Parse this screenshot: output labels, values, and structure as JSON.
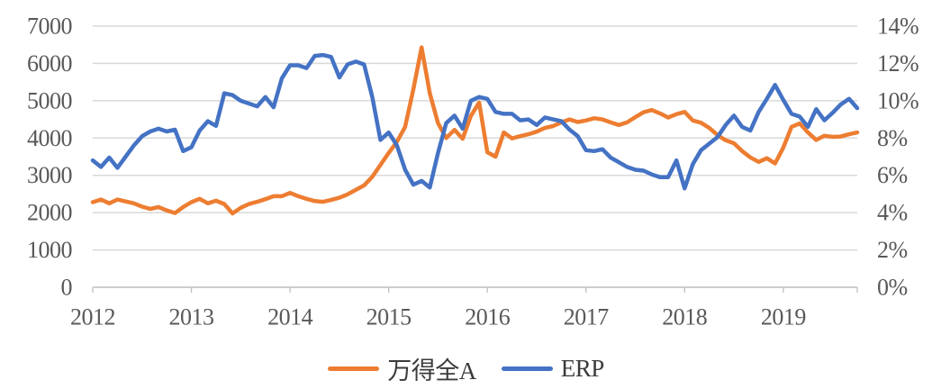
{
  "chart_data": {
    "type": "line",
    "title": "",
    "frequency": "monthly",
    "x_range": [
      "2012-01",
      "2019-10"
    ],
    "grid": true,
    "legend_position": "bottom",
    "categories": [
      "2012-01",
      "2012-02",
      "2012-03",
      "2012-04",
      "2012-05",
      "2012-06",
      "2012-07",
      "2012-08",
      "2012-09",
      "2012-10",
      "2012-11",
      "2012-12",
      "2013-01",
      "2013-02",
      "2013-03",
      "2013-04",
      "2013-05",
      "2013-06",
      "2013-07",
      "2013-08",
      "2013-09",
      "2013-10",
      "2013-11",
      "2013-12",
      "2014-01",
      "2014-02",
      "2014-03",
      "2014-04",
      "2014-05",
      "2014-06",
      "2014-07",
      "2014-08",
      "2014-09",
      "2014-10",
      "2014-11",
      "2014-12",
      "2015-01",
      "2015-02",
      "2015-03",
      "2015-04",
      "2015-05",
      "2015-06",
      "2015-07",
      "2015-08",
      "2015-09",
      "2015-10",
      "2015-11",
      "2015-12",
      "2016-01",
      "2016-02",
      "2016-03",
      "2016-04",
      "2016-05",
      "2016-06",
      "2016-07",
      "2016-08",
      "2016-09",
      "2016-10",
      "2016-11",
      "2016-12",
      "2017-01",
      "2017-02",
      "2017-03",
      "2017-04",
      "2017-05",
      "2017-06",
      "2017-07",
      "2017-08",
      "2017-09",
      "2017-10",
      "2017-11",
      "2017-12",
      "2018-01",
      "2018-02",
      "2018-03",
      "2018-04",
      "2018-05",
      "2018-06",
      "2018-07",
      "2018-08",
      "2018-09",
      "2018-10",
      "2018-11",
      "2018-12",
      "2019-01",
      "2019-02",
      "2019-03",
      "2019-04",
      "2019-05",
      "2019-06",
      "2019-07",
      "2019-08",
      "2019-09",
      "2019-10"
    ],
    "series": [
      {
        "name": "万得全A",
        "axis": "left",
        "color": "#ED7D31",
        "values": [
          2280,
          2350,
          2250,
          2350,
          2300,
          2250,
          2160,
          2100,
          2150,
          2060,
          1990,
          2150,
          2280,
          2370,
          2250,
          2320,
          2230,
          1980,
          2130,
          2230,
          2290,
          2360,
          2440,
          2440,
          2530,
          2440,
          2370,
          2310,
          2290,
          2340,
          2400,
          2490,
          2610,
          2730,
          2960,
          3280,
          3600,
          3900,
          4300,
          5300,
          6430,
          5200,
          4400,
          4000,
          4220,
          3980,
          4590,
          4950,
          3620,
          3500,
          4150,
          3990,
          4050,
          4100,
          4170,
          4270,
          4320,
          4420,
          4500,
          4430,
          4470,
          4530,
          4500,
          4420,
          4350,
          4420,
          4560,
          4690,
          4750,
          4660,
          4550,
          4640,
          4700,
          4470,
          4410,
          4270,
          4080,
          3940,
          3860,
          3650,
          3480,
          3360,
          3460,
          3320,
          3740,
          4300,
          4390,
          4150,
          3950,
          4060,
          4030,
          4040,
          4100,
          4150
        ]
      },
      {
        "name": "ERP",
        "axis": "right",
        "color": "#4472C4",
        "unit": "%",
        "values": [
          6.8,
          6.45,
          6.95,
          6.4,
          7.0,
          7.6,
          8.1,
          8.35,
          8.5,
          8.35,
          8.45,
          7.3,
          7.5,
          8.4,
          8.9,
          8.65,
          10.4,
          10.3,
          10.0,
          9.85,
          9.7,
          10.2,
          9.65,
          11.2,
          11.9,
          11.9,
          11.75,
          12.4,
          12.45,
          12.35,
          11.25,
          11.95,
          12.1,
          11.95,
          10.2,
          7.9,
          8.3,
          7.6,
          6.3,
          5.5,
          5.7,
          5.35,
          7.2,
          8.8,
          9.2,
          8.5,
          10.0,
          10.2,
          10.1,
          9.4,
          9.3,
          9.3,
          8.95,
          9.0,
          8.7,
          9.1,
          9.0,
          8.9,
          8.45,
          8.1,
          7.35,
          7.3,
          7.4,
          6.95,
          6.7,
          6.45,
          6.3,
          6.25,
          6.05,
          5.9,
          5.9,
          6.8,
          5.3,
          6.6,
          7.35,
          7.7,
          8.05,
          8.7,
          9.2,
          8.6,
          8.4,
          9.4,
          10.1,
          10.85,
          10.05,
          9.3,
          9.15,
          8.6,
          9.55,
          8.95,
          9.35,
          9.8,
          10.1,
          9.6
        ]
      }
    ],
    "left_axis": {
      "min": 0,
      "max": 7000,
      "tick_step": 1000,
      "tick_labels": [
        "0",
        "1000",
        "2000",
        "3000",
        "4000",
        "5000",
        "6000",
        "7000"
      ]
    },
    "right_axis": {
      "min": 0,
      "max": 14,
      "tick_step": 2,
      "unit": "%",
      "tick_labels": [
        "0%",
        "2%",
        "4%",
        "6%",
        "8%",
        "10%",
        "12%",
        "14%"
      ]
    },
    "x_axis": {
      "ticks": [
        {
          "label": "2012",
          "month_index": 0
        },
        {
          "label": "2013",
          "month_index": 12
        },
        {
          "label": "2014",
          "month_index": 24
        },
        {
          "label": "2015",
          "month_index": 36
        },
        {
          "label": "2016",
          "month_index": 48
        },
        {
          "label": "2017",
          "month_index": 60
        },
        {
          "label": "2018",
          "month_index": 72
        },
        {
          "label": "2019",
          "month_index": 84
        }
      ]
    },
    "colors": {
      "gridline": "#D9D9D9",
      "axis_line": "#BFBFBF",
      "axis_label": "#595959",
      "legend_label": "#3B3B3B",
      "background": "#FFFFFF"
    }
  },
  "legend": {
    "items": [
      {
        "label": "万得全A"
      },
      {
        "label": "ERP"
      }
    ]
  }
}
